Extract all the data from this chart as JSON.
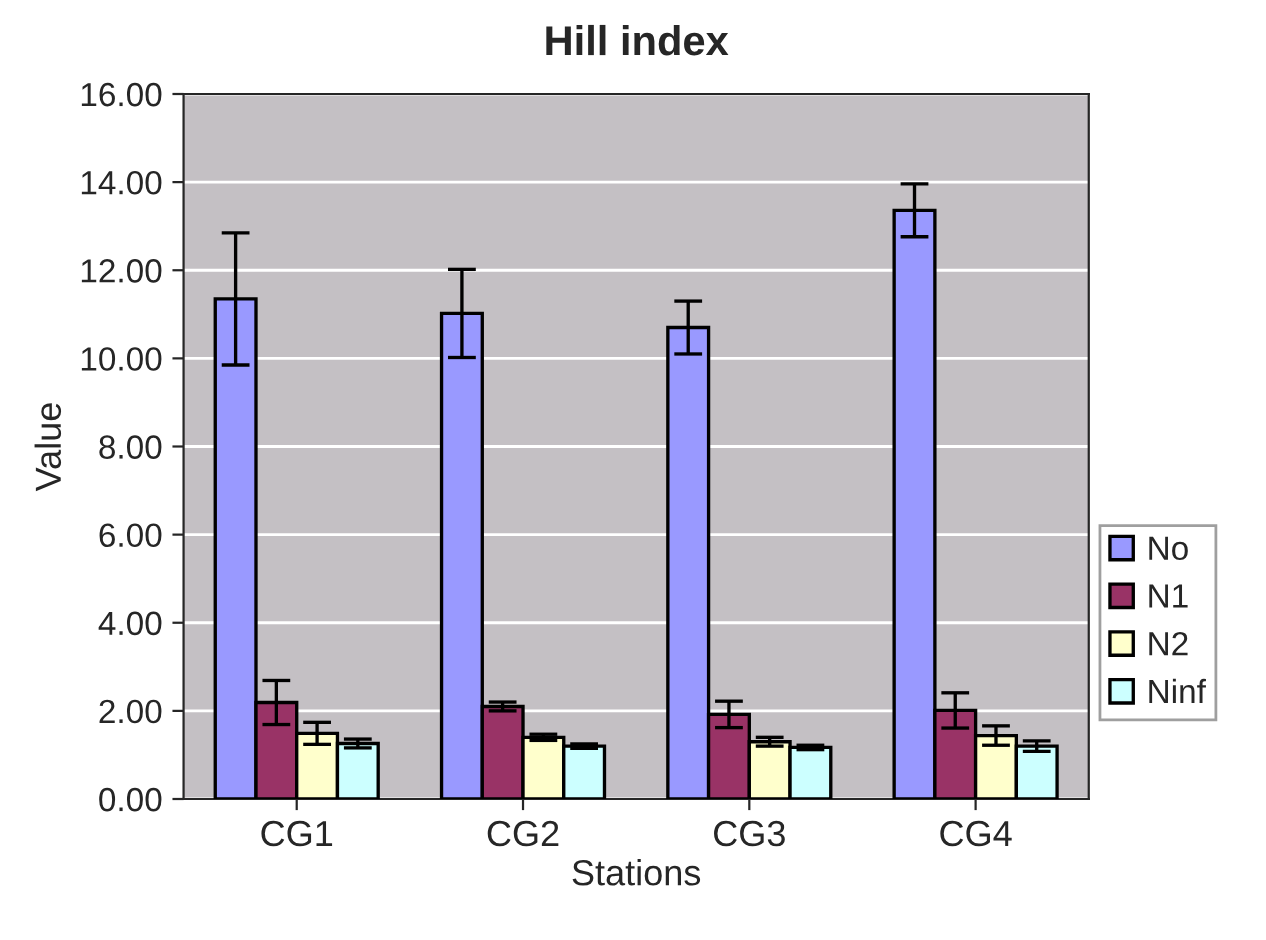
{
  "chart_data": {
    "type": "bar",
    "title": "Hill index",
    "xlabel": "Stations",
    "ylabel": "Value",
    "categories": [
      "CG1",
      "CG2",
      "CG3",
      "CG4"
    ],
    "series": [
      {
        "name": "No",
        "color": "#9999ff",
        "values": [
          11.35,
          11.02,
          10.7,
          13.36
        ],
        "errors": [
          1.5,
          1.0,
          0.6,
          0.6
        ]
      },
      {
        "name": "N1",
        "color": "#993366",
        "values": [
          2.19,
          2.1,
          1.92,
          2.01
        ],
        "errors": [
          0.5,
          0.1,
          0.3,
          0.4
        ]
      },
      {
        "name": "N2",
        "color": "#ffffcc",
        "values": [
          1.49,
          1.4,
          1.3,
          1.44
        ],
        "errors": [
          0.25,
          0.07,
          0.1,
          0.22
        ]
      },
      {
        "name": "Ninf",
        "color": "#ccffff",
        "values": [
          1.26,
          1.2,
          1.17,
          1.2
        ],
        "errors": [
          0.1,
          0.05,
          0.05,
          0.12
        ]
      }
    ],
    "ylim": [
      0,
      16
    ],
    "yticks": [
      {
        "value": 0,
        "label": "0.00"
      },
      {
        "value": 2,
        "label": "2.00"
      },
      {
        "value": 4,
        "label": "4.00"
      },
      {
        "value": 6,
        "label": "6.00"
      },
      {
        "value": 8,
        "label": "8.00"
      },
      {
        "value": 10,
        "label": "10.00"
      },
      {
        "value": 12,
        "label": "12.00"
      },
      {
        "value": 14,
        "label": "14.00"
      },
      {
        "value": 16,
        "label": "16.00"
      }
    ],
    "grid": "y",
    "legend": "right"
  }
}
